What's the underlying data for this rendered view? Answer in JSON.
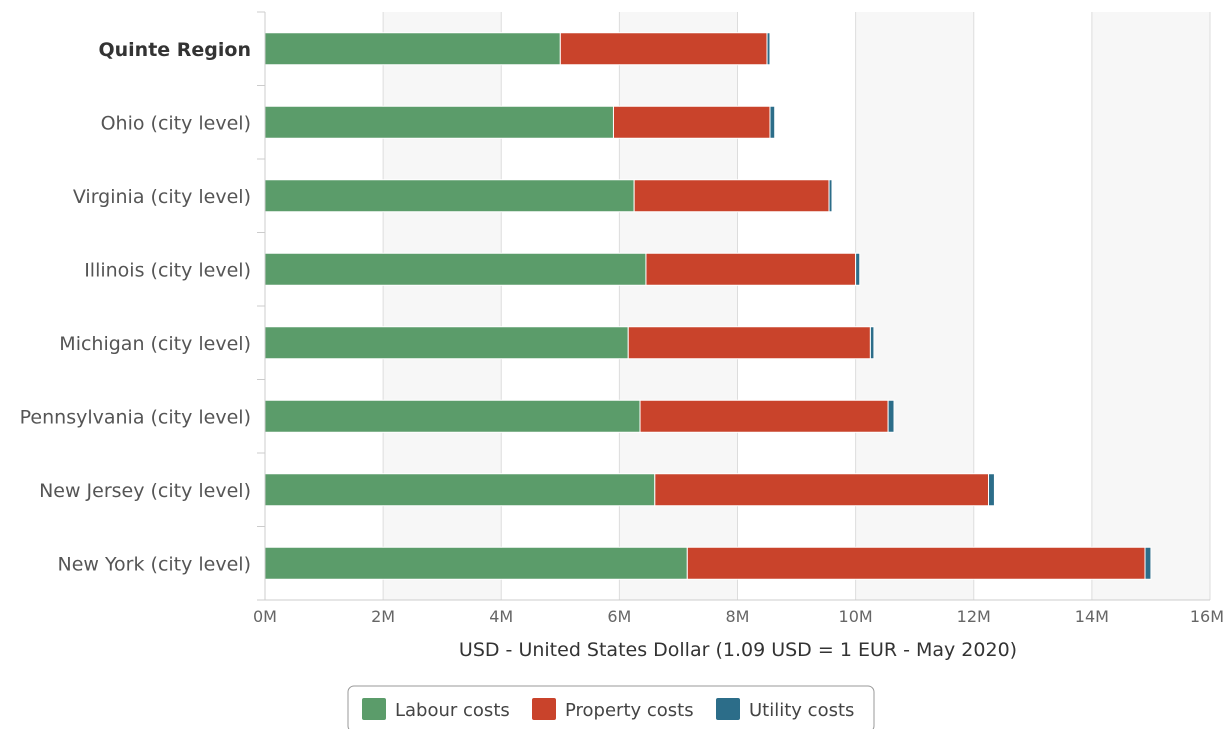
{
  "chart_data": {
    "type": "bar",
    "orientation": "horizontal",
    "stacked": true,
    "title": "",
    "xlabel": "USD - United States Dollar (1.09 USD = 1 EUR - May 2020)",
    "ylabel": "",
    "xlim": [
      0,
      16
    ],
    "x_ticks": [
      "0M",
      "2M",
      "4M",
      "6M",
      "8M",
      "10M",
      "12M",
      "14M",
      "16M"
    ],
    "grid": true,
    "legend_position": "bottom",
    "highlighted_category": "Quinte Region",
    "categories": [
      "Quinte Region",
      "Ohio (city level)",
      "Virginia (city level)",
      "Illinois (city level)",
      "Michigan (city level)",
      "Pennsylvania (city level)",
      "New Jersey (city level)",
      "New York (city level)"
    ],
    "series": [
      {
        "name": "Labour costs",
        "color": "#5b9c6a",
        "values": [
          5.0,
          5.9,
          6.25,
          6.45,
          6.15,
          6.35,
          6.6,
          7.15
        ]
      },
      {
        "name": "Property costs",
        "color": "#c9432b",
        "values": [
          3.5,
          2.65,
          3.3,
          3.55,
          4.1,
          4.2,
          5.65,
          7.75
        ]
      },
      {
        "name": "Utility costs",
        "color": "#2c6d89",
        "values": [
          0.05,
          0.08,
          0.05,
          0.07,
          0.06,
          0.1,
          0.1,
          0.1
        ]
      }
    ]
  }
}
